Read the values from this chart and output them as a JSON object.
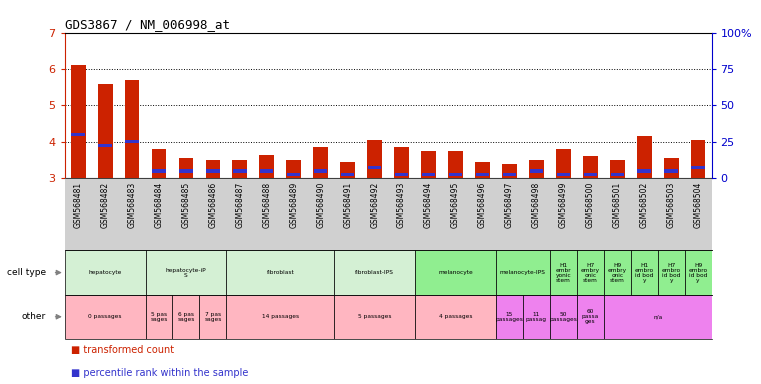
{
  "title": "GDS3867 / NM_006998_at",
  "samples": [
    "GSM568481",
    "GSM568482",
    "GSM568483",
    "GSM568484",
    "GSM568485",
    "GSM568486",
    "GSM568487",
    "GSM568488",
    "GSM568489",
    "GSM568490",
    "GSM568491",
    "GSM568492",
    "GSM568493",
    "GSM568494",
    "GSM568495",
    "GSM568496",
    "GSM568497",
    "GSM568498",
    "GSM568499",
    "GSM568500",
    "GSM568501",
    "GSM568502",
    "GSM568503",
    "GSM568504"
  ],
  "red_values": [
    6.1,
    5.6,
    5.7,
    3.8,
    3.55,
    3.5,
    3.5,
    3.65,
    3.5,
    3.85,
    3.45,
    4.05,
    3.85,
    3.75,
    3.75,
    3.45,
    3.4,
    3.5,
    3.8,
    3.6,
    3.5,
    4.15,
    3.55,
    4.05
  ],
  "blue_values": [
    4.2,
    3.9,
    4.0,
    3.2,
    3.2,
    3.2,
    3.2,
    3.2,
    3.1,
    3.2,
    3.1,
    3.3,
    3.1,
    3.1,
    3.1,
    3.1,
    3.1,
    3.2,
    3.1,
    3.1,
    3.1,
    3.2,
    3.2,
    3.3
  ],
  "ylim": [
    3,
    7
  ],
  "yticks": [
    3,
    4,
    5,
    6,
    7
  ],
  "y2ticks": [
    0,
    25,
    50,
    75,
    100
  ],
  "y2labels": [
    "0",
    "25",
    "50",
    "75",
    "100%"
  ],
  "dotted_lines": [
    4,
    5,
    6
  ],
  "bar_color": "#cc2200",
  "blue_color": "#3333cc",
  "bg_color": "#ffffff",
  "left_tick_color": "#cc2200",
  "right_tick_color": "#0000cc",
  "xtick_bg": "#d0d0d0",
  "cell_type_groups": [
    {
      "label": "hepatocyte",
      "start": 0,
      "end": 2,
      "color": "#d4f0d4"
    },
    {
      "label": "hepatocyte-iP\nS",
      "start": 3,
      "end": 5,
      "color": "#d4f0d4"
    },
    {
      "label": "fibroblast",
      "start": 6,
      "end": 9,
      "color": "#d4f0d4"
    },
    {
      "label": "fibroblast-IPS",
      "start": 10,
      "end": 12,
      "color": "#d4f0d4"
    },
    {
      "label": "melanocyte",
      "start": 13,
      "end": 15,
      "color": "#90ee90"
    },
    {
      "label": "melanocyte-IPS",
      "start": 16,
      "end": 17,
      "color": "#90ee90"
    },
    {
      "label": "H1\nembr\nyonic\nstem",
      "start": 18,
      "end": 18,
      "color": "#90ee90"
    },
    {
      "label": "H7\nembry\nonic\nstem",
      "start": 19,
      "end": 19,
      "color": "#90ee90"
    },
    {
      "label": "H9\nembry\nonic\nstem",
      "start": 20,
      "end": 20,
      "color": "#90ee90"
    },
    {
      "label": "H1\nembro\nid bod\ny",
      "start": 21,
      "end": 21,
      "color": "#90ee90"
    },
    {
      "label": "H7\nembro\nid bod\ny",
      "start": 22,
      "end": 22,
      "color": "#90ee90"
    },
    {
      "label": "H9\nembro\nid bod\ny",
      "start": 23,
      "end": 23,
      "color": "#90ee90"
    }
  ],
  "other_groups": [
    {
      "label": "0 passages",
      "start": 0,
      "end": 2,
      "color": "#ffb6c1"
    },
    {
      "label": "5 pas\nsages",
      "start": 3,
      "end": 3,
      "color": "#ffb6c1"
    },
    {
      "label": "6 pas\nsages",
      "start": 4,
      "end": 4,
      "color": "#ffb6c1"
    },
    {
      "label": "7 pas\nsages",
      "start": 5,
      "end": 5,
      "color": "#ffb6c1"
    },
    {
      "label": "14 passages",
      "start": 6,
      "end": 9,
      "color": "#ffb6c1"
    },
    {
      "label": "5 passages",
      "start": 10,
      "end": 12,
      "color": "#ffb6c1"
    },
    {
      "label": "4 passages",
      "start": 13,
      "end": 15,
      "color": "#ffb6c1"
    },
    {
      "label": "15\npassages",
      "start": 16,
      "end": 16,
      "color": "#ee82ee"
    },
    {
      "label": "11\npassag",
      "start": 17,
      "end": 17,
      "color": "#ee82ee"
    },
    {
      "label": "50\npassages",
      "start": 18,
      "end": 18,
      "color": "#ee82ee"
    },
    {
      "label": "60\npassa\nges",
      "start": 19,
      "end": 19,
      "color": "#ee82ee"
    },
    {
      "label": "n/a",
      "start": 20,
      "end": 23,
      "color": "#ee82ee"
    }
  ]
}
